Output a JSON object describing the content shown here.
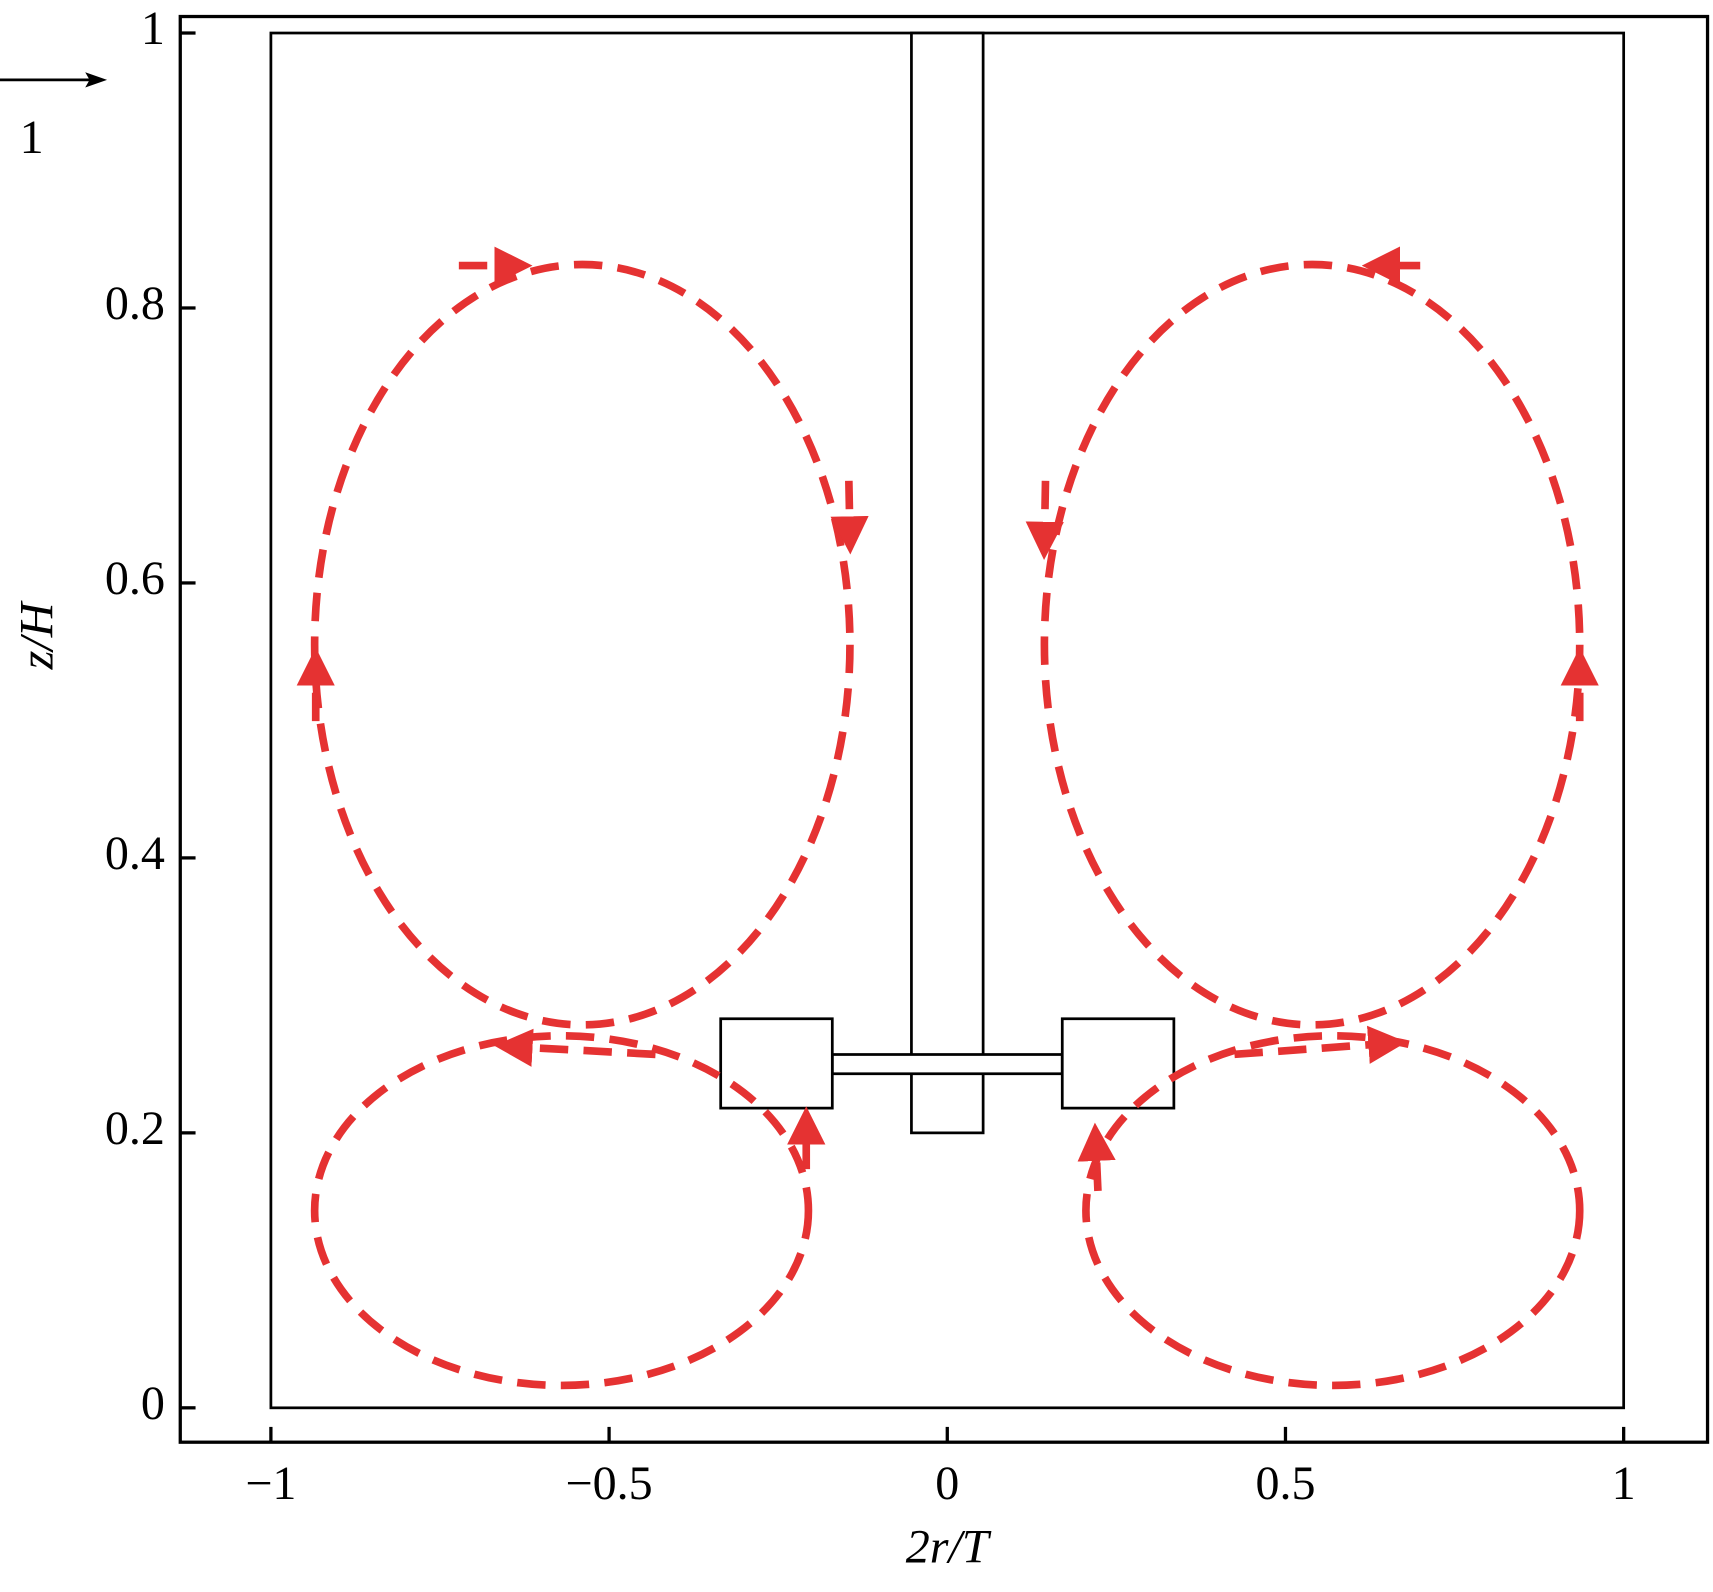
{
  "chart_data": {
    "type": "quiver",
    "x_label": "2r/T",
    "y_label": "z/H",
    "reference_label": "1",
    "xlim": [
      -1.134,
      1.124
    ],
    "ylim": [
      -0.025,
      1.012
    ],
    "xticks": [
      {
        "value": -1,
        "label": "−1"
      },
      {
        "value": -0.5,
        "label": "−0.5"
      },
      0,
      0.5,
      1
    ],
    "yticks": [
      0,
      0.2,
      0.4,
      0.6,
      0.8,
      1
    ]
  }
}
